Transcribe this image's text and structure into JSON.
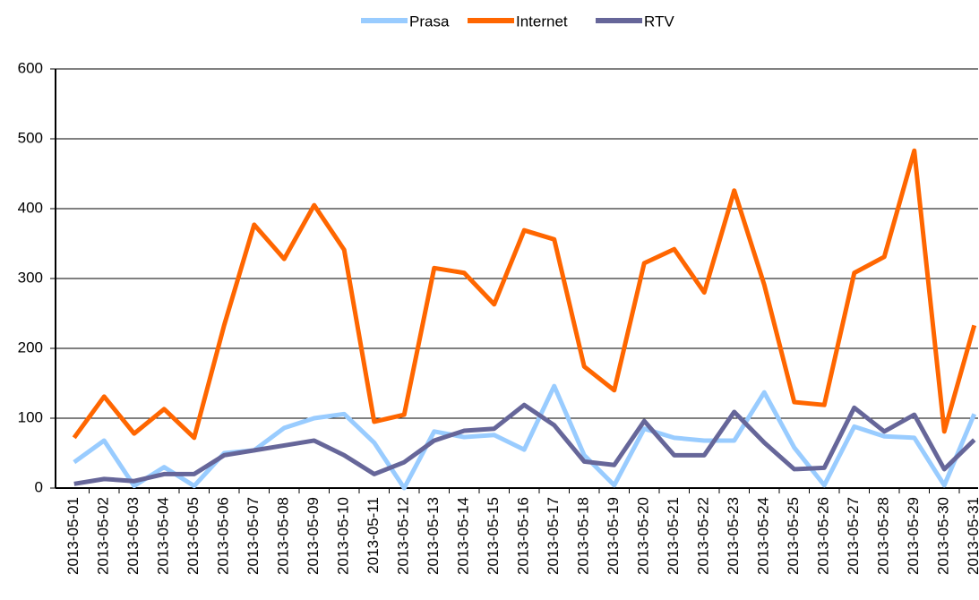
{
  "chart_data": {
    "type": "line",
    "categories": [
      "2013-05-01",
      "2013-05-02",
      "2013-05-03",
      "2013-05-04",
      "2013-05-05",
      "2013-05-06",
      "2013-05-07",
      "2013-05-08",
      "2013-05-09",
      "2013-05-10",
      "2013-05-11",
      "2013-05-12",
      "2013-05-13",
      "2013-05-14",
      "2013-05-15",
      "2013-05-16",
      "2013-05-17",
      "2013-05-18",
      "2013-05-19",
      "2013-05-20",
      "2013-05-21",
      "2013-05-22",
      "2013-05-23",
      "2013-05-24",
      "2013-05-25",
      "2013-05-26",
      "2013-05-27",
      "2013-05-28",
      "2013-05-29",
      "2013-05-30",
      "2013-05-31"
    ],
    "series": [
      {
        "name": "Prasa",
        "color": "#99ccff",
        "values": [
          37,
          68,
          3,
          30,
          3,
          50,
          54,
          86,
          100,
          106,
          65,
          0,
          81,
          73,
          76,
          55,
          146,
          47,
          4,
          85,
          72,
          68,
          68,
          137,
          58,
          4,
          88,
          74,
          72,
          4,
          106
        ]
      },
      {
        "name": "Internet",
        "color": "#ff6600",
        "values": [
          72,
          131,
          78,
          113,
          72,
          233,
          377,
          328,
          405,
          341,
          95,
          105,
          315,
          308,
          263,
          369,
          356,
          174,
          140,
          322,
          342,
          280,
          426,
          291,
          123,
          119,
          308,
          331,
          483,
          81,
          233
        ]
      },
      {
        "name": "RTV",
        "color": "#666699",
        "values": [
          6,
          13,
          10,
          20,
          20,
          47,
          54,
          61,
          68,
          47,
          20,
          37,
          68,
          82,
          85,
          119,
          90,
          38,
          33,
          96,
          47,
          47,
          109,
          65,
          27,
          29,
          115,
          81,
          105,
          27,
          69
        ]
      }
    ],
    "ylim": [
      0,
      600
    ],
    "yticks": [
      0,
      100,
      200,
      300,
      400,
      500,
      600
    ],
    "grid": true,
    "legend": "top"
  }
}
